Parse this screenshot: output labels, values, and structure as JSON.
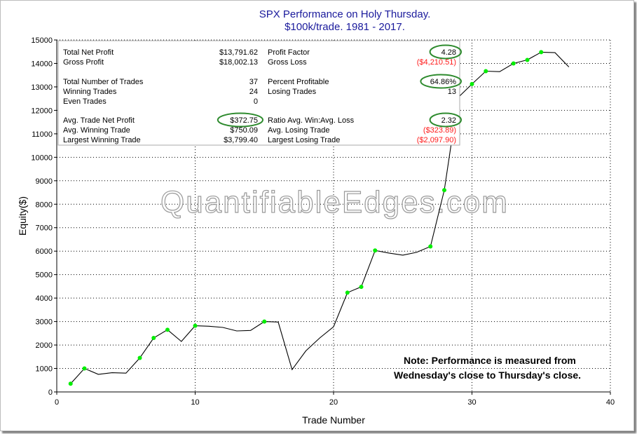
{
  "chart_data": {
    "type": "line",
    "title": "SPX Performance on Holy Thursday.",
    "subtitle": "$100k/trade. 1981 - 2017.",
    "xlabel": "Trade Number",
    "ylabel": "Equity($)",
    "xlim": [
      0,
      40
    ],
    "ylim": [
      0,
      15000
    ],
    "xticks": [
      0,
      10,
      20,
      30,
      40
    ],
    "yticks": [
      0,
      1000,
      2000,
      3000,
      4000,
      5000,
      6000,
      7000,
      8000,
      9000,
      10000,
      11000,
      12000,
      13000,
      14000,
      15000
    ],
    "grid": true,
    "series": [
      {
        "x": [
          1,
          2,
          3,
          4,
          5,
          6,
          7,
          8,
          9,
          10,
          11,
          12,
          13,
          14,
          15,
          16,
          17,
          18,
          19,
          20,
          21,
          22,
          23,
          24,
          25,
          26,
          27,
          28,
          29,
          30,
          31,
          32,
          33,
          34,
          35,
          36,
          37
        ],
        "y": [
          350,
          1000,
          750,
          820,
          800,
          1450,
          2300,
          2650,
          2150,
          2820,
          2800,
          2750,
          2600,
          2620,
          3000,
          2980,
          950,
          1750,
          2300,
          2780,
          4230,
          4480,
          6030,
          5920,
          5830,
          5950,
          6200,
          8600,
          12550,
          13120,
          13670,
          13650,
          14000,
          14150,
          14480,
          14460,
          13850
        ],
        "new_high_markers": [
          1,
          2,
          6,
          7,
          8,
          10,
          15,
          21,
          22,
          23,
          27,
          28,
          30,
          31,
          33,
          34,
          35
        ],
        "line_color": "#000000",
        "marker_color": "#00ee00"
      }
    ],
    "watermark": "QuantifiableEdges.com",
    "note_lines": [
      "Note: Performance is measured from",
      "Wednesday's close to Thursday's close."
    ],
    "stats": {
      "left": [
        {
          "label": "Total Net Profit",
          "value": "$13,791.62"
        },
        {
          "label": "Gross Profit",
          "value": "$18,002.13"
        },
        {
          "label": "Total Number of Trades",
          "value": "37"
        },
        {
          "label": "Winning Trades",
          "value": "24"
        },
        {
          "label": "Even Trades",
          "value": "0"
        },
        {
          "label": "Avg. Trade Net Profit",
          "value": "$372.75",
          "circled": true
        },
        {
          "label": "Avg. Winning Trade",
          "value": "$750.09"
        },
        {
          "label": "Largest Winning Trade",
          "value": "$3,799.40"
        }
      ],
      "right": [
        {
          "label": "Profit Factor",
          "value": "4.28",
          "circled": true
        },
        {
          "label": "Gross Loss",
          "value": "($4,210.51)",
          "negative": true
        },
        {
          "label": "Percent Profitable",
          "value": "64.86%",
          "circled": true
        },
        {
          "label": "Losing Trades",
          "value": "13"
        },
        {
          "label": "Ratio Avg. Win:Avg. Loss",
          "value": "2.32",
          "circled": true
        },
        {
          "label": "Avg. Losing Trade",
          "value": "($323.89)",
          "negative": true
        },
        {
          "label": "Largest Losing Trade",
          "value": "($2,097.90)",
          "negative": true
        }
      ]
    },
    "colors": {
      "title": "#1a1a9c",
      "negative": "#ff1a1a",
      "circle": "#2e8b2e",
      "grid": "#000000"
    }
  }
}
